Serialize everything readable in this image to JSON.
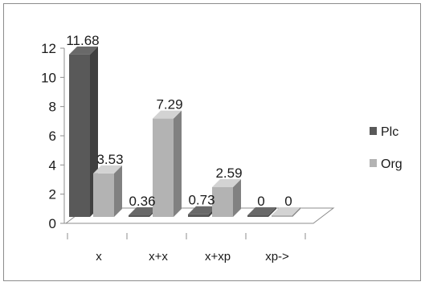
{
  "chart_data": {
    "type": "bar",
    "categories": [
      "x",
      "x+x",
      "x+xp",
      "xp->"
    ],
    "series": [
      {
        "name": "Plc",
        "values": [
          11.68,
          0.36,
          0.73,
          0
        ],
        "color": "#595959"
      },
      {
        "name": "Org",
        "values": [
          3.53,
          7.29,
          2.59,
          0
        ],
        "color": "#b3b3b3"
      }
    ],
    "data_labels": [
      [
        "11.68",
        "0.36",
        "0.73",
        "0"
      ],
      [
        "3.53",
        "7.29",
        "2.59",
        "0"
      ]
    ],
    "yticks": [
      "0",
      "2",
      "4",
      "6",
      "8",
      "10",
      "12"
    ],
    "ylim": [
      0,
      12
    ],
    "grid": false,
    "legend": "right",
    "style": "3d-clustered-column"
  }
}
